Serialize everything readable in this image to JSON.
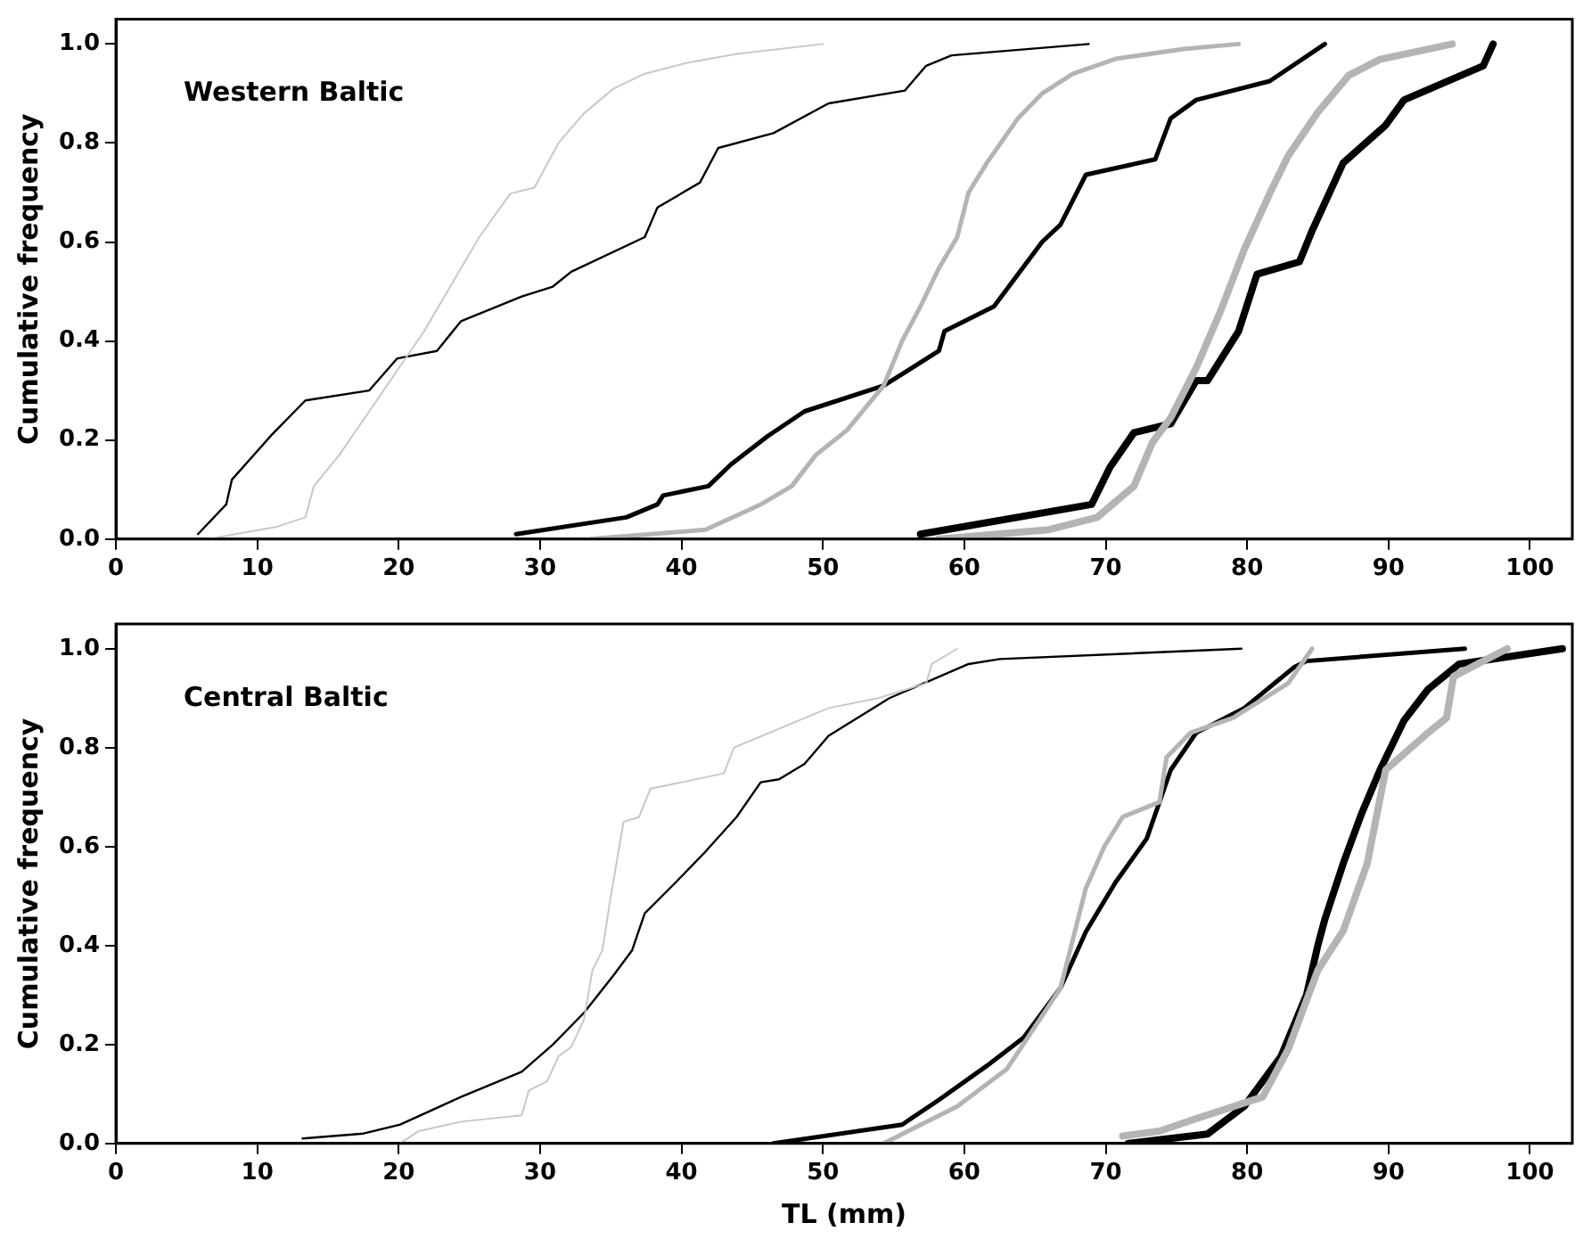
{
  "chart_data": [
    {
      "type": "line",
      "ylabel": "Cumulative frequency",
      "annotations": [
        "Western Baltic"
      ],
      "xlim": [
        0,
        103
      ],
      "ylim": [
        0,
        1.05
      ],
      "xticks": [
        0,
        10,
        20,
        30,
        40,
        50,
        60,
        70,
        80,
        90,
        100
      ],
      "yticks": [
        {
          "value": 0,
          "label": "0.0"
        },
        {
          "value": 0.2,
          "label": "0.2"
        },
        {
          "value": 0.4,
          "label": "0.4"
        },
        {
          "value": 0.6,
          "label": "0.6"
        },
        {
          "value": 0.8,
          "label": "0.8"
        },
        {
          "value": 1,
          "label": "1.0"
        }
      ],
      "grid": false,
      "legend": false,
      "marker": "none",
      "line_style": "solid",
      "series": [
        {
          "color": "#c8c8c8",
          "x": [
            6.5,
            11.4,
            13.4,
            14.0,
            15.8,
            18.8,
            21.8,
            24.4,
            25.7,
            27.9,
            29.6,
            31.3,
            33.1,
            35.2,
            37.4,
            40.4,
            43.9,
            50.0
          ],
          "values": [
            0,
            0.025,
            0.044,
            0.107,
            0.17,
            0.295,
            0.42,
            0.547,
            0.61,
            0.698,
            0.71,
            0.8,
            0.86,
            0.91,
            0.94,
            0.962,
            0.98,
            1.0
          ]
        },
        {
          "color": "#000000",
          "x": [
            5.8,
            7.8,
            8.2,
            11.0,
            13.4,
            17.9,
            19.9,
            22.7,
            24.4,
            28.7,
            30.9,
            32.2,
            37.4,
            38.3,
            41.3,
            42.6,
            46.5,
            50.4,
            55.8,
            57.3,
            59.1,
            68.8
          ],
          "values": [
            0.01,
            0.07,
            0.12,
            0.21,
            0.28,
            0.3,
            0.365,
            0.38,
            0.44,
            0.49,
            0.51,
            0.54,
            0.61,
            0.67,
            0.72,
            0.79,
            0.82,
            0.88,
            0.906,
            0.956,
            0.977,
            1.0
          ]
        },
        {
          "color": "#b4b4b4",
          "x": [
            33.5,
            41.7,
            45.6,
            47.8,
            49.5,
            51.7,
            54.3,
            55.6,
            56.9,
            58.2,
            59.5,
            60.3,
            61.6,
            63.8,
            65.5,
            67.7,
            70.7,
            75.5,
            79.4
          ],
          "values": [
            0,
            0.019,
            0.07,
            0.107,
            0.17,
            0.22,
            0.31,
            0.4,
            0.47,
            0.547,
            0.61,
            0.7,
            0.76,
            0.85,
            0.9,
            0.94,
            0.97,
            0.99,
            1.0
          ]
        },
        {
          "color": "#000000",
          "x": [
            28.3,
            36.1,
            38.3,
            38.7,
            41.9,
            43.5,
            46.1,
            48.7,
            54.3,
            58.2,
            58.6,
            62.1,
            65.5,
            66.8,
            68.6,
            73.5,
            74.6,
            76.4,
            81.6,
            85.5
          ],
          "values": [
            0.01,
            0.044,
            0.07,
            0.088,
            0.107,
            0.151,
            0.208,
            0.258,
            0.31,
            0.38,
            0.42,
            0.47,
            0.6,
            0.635,
            0.736,
            0.767,
            0.85,
            0.887,
            0.925,
            1.0
          ]
        },
        {
          "color": "#b4b4b4",
          "x": [
            58.2,
            66.0,
            69.4,
            72.0,
            73.3,
            74.6,
            76.4,
            78.1,
            79.8,
            81.6,
            82.9,
            85.0,
            87.2,
            89.4,
            94.5
          ],
          "values": [
            0,
            0.019,
            0.044,
            0.107,
            0.195,
            0.245,
            0.346,
            0.459,
            0.585,
            0.698,
            0.774,
            0.862,
            0.937,
            0.969,
            1.0
          ]
        },
        {
          "color": "#000000",
          "x": [
            56.9,
            69.0,
            70.3,
            72.0,
            74.6,
            76.4,
            77.2,
            79.4,
            80.7,
            83.7,
            84.6,
            86.8,
            89.8,
            91.1,
            96.7,
            97.4
          ],
          "values": [
            0.01,
            0.07,
            0.145,
            0.215,
            0.233,
            0.32,
            0.32,
            0.42,
            0.535,
            0.56,
            0.623,
            0.76,
            0.836,
            0.887,
            0.956,
            1.0
          ]
        }
      ]
    },
    {
      "type": "line",
      "xlabel": "TL (mm)",
      "ylabel": "Cumulative frequency",
      "annotations": [
        "Central Baltic"
      ],
      "xlim": [
        0,
        103
      ],
      "ylim": [
        0,
        1.05
      ],
      "xticks": [
        0,
        10,
        20,
        30,
        40,
        50,
        60,
        70,
        80,
        90,
        100
      ],
      "yticks": [
        {
          "value": 0,
          "label": "0.0"
        },
        {
          "value": 0.2,
          "label": "0.2"
        },
        {
          "value": 0.4,
          "label": "0.4"
        },
        {
          "value": 0.6,
          "label": "0.6"
        },
        {
          "value": 0.8,
          "label": "0.8"
        },
        {
          "value": 1,
          "label": "1.0"
        }
      ],
      "grid": false,
      "legend": false,
      "marker": "none",
      "line_style": "solid",
      "series": [
        {
          "color": "#c8c8c8",
          "x": [
            20.1,
            21.4,
            24.4,
            28.7,
            29.2,
            30.5,
            31.3,
            32.2,
            33.1,
            33.7,
            34.4,
            35.0,
            35.9,
            37.0,
            37.8,
            40.0,
            43.0,
            43.7,
            50.4,
            53.9,
            57.3,
            57.7,
            59.5
          ],
          "values": [
            0,
            0.025,
            0.044,
            0.057,
            0.107,
            0.126,
            0.176,
            0.195,
            0.25,
            0.35,
            0.39,
            0.5,
            0.65,
            0.66,
            0.717,
            0.73,
            0.748,
            0.8,
            0.88,
            0.9,
            0.93,
            0.969,
            1.0
          ]
        },
        {
          "color": "#000000",
          "x": [
            13.2,
            17.5,
            20.1,
            24.4,
            28.7,
            30.9,
            33.1,
            35.2,
            36.5,
            37.4,
            39.6,
            41.7,
            43.9,
            45.6,
            46.9,
            48.7,
            50.4,
            54.7,
            60.3,
            62.5,
            79.6
          ],
          "values": [
            0.01,
            0.02,
            0.038,
            0.094,
            0.145,
            0.2,
            0.264,
            0.34,
            0.39,
            0.465,
            0.528,
            0.59,
            0.66,
            0.73,
            0.736,
            0.767,
            0.824,
            0.9,
            0.969,
            0.979,
            1.0
          ]
        },
        {
          "color": "#b4b4b4",
          "x": [
            54.3,
            59.5,
            63.0,
            66.8,
            68.6,
            69.9,
            71.2,
            73.8,
            74.3,
            76.0,
            79.0,
            82.9,
            84.6
          ],
          "values": [
            0,
            0.075,
            0.15,
            0.314,
            0.516,
            0.6,
            0.66,
            0.69,
            0.78,
            0.83,
            0.86,
            0.93,
            1.0
          ]
        },
        {
          "color": "#000000",
          "x": [
            46.5,
            55.6,
            58.2,
            61.6,
            64.2,
            66.8,
            68.6,
            70.7,
            72.9,
            74.6,
            76.4,
            79.8,
            83.3,
            84.2,
            95.4
          ],
          "values": [
            0,
            0.038,
            0.088,
            0.157,
            0.214,
            0.314,
            0.428,
            0.528,
            0.616,
            0.755,
            0.83,
            0.88,
            0.962,
            0.975,
            1.0
          ]
        },
        {
          "color": "#b4b4b4",
          "x": [
            71.2,
            73.8,
            76.4,
            81.1,
            82.9,
            85.0,
            86.8,
            88.5,
            89.8,
            92.8,
            94.1,
            94.6,
            98.4
          ],
          "values": [
            0.015,
            0.025,
            0.05,
            0.094,
            0.19,
            0.35,
            0.43,
            0.566,
            0.755,
            0.83,
            0.86,
            0.944,
            1.0
          ]
        },
        {
          "color": "#000000",
          "x": [
            71.6,
            77.2,
            79.8,
            82.4,
            84.2,
            85.0,
            85.5,
            86.8,
            88.1,
            89.4,
            91.1,
            92.8,
            95.0,
            102.3
          ],
          "values": [
            0,
            0.019,
            0.075,
            0.176,
            0.3,
            0.4,
            0.453,
            0.566,
            0.667,
            0.755,
            0.855,
            0.918,
            0.969,
            1.0
          ]
        }
      ]
    }
  ]
}
